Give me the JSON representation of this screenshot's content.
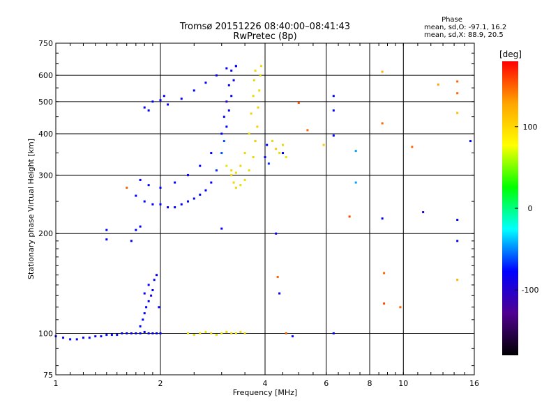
{
  "chart_data": {
    "type": "scatter",
    "title": "Tromsø 20151226 08:40:00–08:41:43",
    "subtitle": "RwPretec (8p)",
    "xlabel": "Frequency [MHz]",
    "ylabel": "Stationary phase Virtual Height [km]",
    "x_scale": "log",
    "y_scale": "log",
    "xlim": [
      1,
      16
    ],
    "ylim": [
      75,
      750
    ],
    "x_ticks": [
      1,
      2,
      4,
      6,
      8,
      10,
      16
    ],
    "y_ticks": [
      75,
      100,
      200,
      300,
      400,
      500,
      600,
      750
    ],
    "x_gridlines": [
      2,
      4,
      6,
      8,
      10
    ],
    "y_gridlines": [
      100,
      200,
      300,
      400,
      500,
      600
    ],
    "grid": true,
    "stats": {
      "header": "Phase",
      "line_o": "mean, sd,O: -97.1, 16.2",
      "line_x": "mean, sd,X: 88.9, 20.5"
    },
    "colorbar": {
      "label": "[deg]",
      "range": [
        -180,
        180
      ],
      "ticks": [
        100,
        0,
        -100
      ],
      "colors": [
        "#ff0000",
        "#ffa500",
        "#ffff00",
        "#00ff00",
        "#00ffff",
        "#0000ff",
        "#500090",
        "#000000"
      ]
    },
    "series": [
      {
        "values": [
          [
            1.0,
            98,
            -100
          ],
          [
            1.05,
            97,
            -100
          ],
          [
            1.1,
            96,
            -100
          ],
          [
            1.15,
            96,
            -105
          ],
          [
            1.2,
            97,
            -100
          ],
          [
            1.25,
            97,
            -100
          ],
          [
            1.3,
            98,
            -105
          ],
          [
            1.35,
            98,
            -100
          ],
          [
            1.4,
            99,
            -100
          ],
          [
            1.45,
            99,
            -100
          ],
          [
            1.5,
            99,
            -100
          ],
          [
            1.55,
            100,
            -100
          ],
          [
            1.6,
            100,
            -100
          ],
          [
            1.65,
            100,
            -100
          ],
          [
            1.7,
            100,
            -105
          ],
          [
            1.75,
            100,
            -100
          ],
          [
            1.8,
            101,
            -100
          ],
          [
            1.85,
            100,
            -100
          ],
          [
            1.9,
            100,
            -100
          ],
          [
            1.95,
            100,
            -100
          ],
          [
            2.0,
            100,
            -100
          ]
        ]
      },
      {
        "values": [
          [
            1.75,
            105,
            -100
          ],
          [
            1.78,
            110,
            -100
          ],
          [
            1.8,
            115,
            -100
          ],
          [
            1.82,
            120,
            -100
          ],
          [
            1.85,
            125,
            -100
          ],
          [
            1.88,
            130,
            -110
          ],
          [
            1.9,
            135,
            -100
          ],
          [
            1.92,
            145,
            -100
          ],
          [
            1.95,
            150,
            -100
          ],
          [
            1.85,
            140,
            -100
          ],
          [
            1.8,
            132,
            -100
          ],
          [
            1.98,
            120,
            -100
          ]
        ]
      },
      {
        "values": [
          [
            1.7,
            260,
            -100
          ],
          [
            1.8,
            250,
            -100
          ],
          [
            1.9,
            245,
            -100
          ],
          [
            2.0,
            245,
            -100
          ],
          [
            2.1,
            240,
            -105
          ],
          [
            2.2,
            240,
            -100
          ],
          [
            2.3,
            245,
            -100
          ],
          [
            2.4,
            250,
            -100
          ],
          [
            2.5,
            255,
            -100
          ],
          [
            2.6,
            262,
            -100
          ],
          [
            2.7,
            270,
            -100
          ],
          [
            2.8,
            285,
            -100
          ],
          [
            2.9,
            310,
            -90
          ],
          [
            3.0,
            350,
            -80
          ],
          [
            3.05,
            380,
            -80
          ],
          [
            3.1,
            420,
            -100
          ],
          [
            3.15,
            470,
            -100
          ],
          [
            3.2,
            520,
            -100
          ],
          [
            3.25,
            580,
            -100
          ],
          [
            3.3,
            640,
            -100
          ]
        ]
      },
      {
        "values": [
          [
            1.75,
            290,
            -100
          ],
          [
            1.85,
            280,
            -100
          ],
          [
            2.0,
            275,
            -100
          ],
          [
            2.2,
            285,
            -100
          ],
          [
            2.4,
            300,
            -100
          ],
          [
            2.6,
            320,
            -100
          ],
          [
            2.8,
            350,
            -100
          ],
          [
            3.0,
            400,
            -100
          ],
          [
            3.05,
            450,
            -100
          ],
          [
            3.1,
            500,
            -120
          ],
          [
            3.15,
            560,
            -100
          ],
          [
            3.2,
            620,
            -100
          ]
        ]
      },
      {
        "values": [
          [
            1.8,
            480,
            -100
          ],
          [
            1.9,
            500,
            -100
          ],
          [
            2.0,
            505,
            -100
          ],
          [
            2.1,
            490,
            -100
          ],
          [
            2.3,
            510,
            -100
          ],
          [
            2.5,
            540,
            -100
          ],
          [
            2.7,
            570,
            -100
          ],
          [
            2.9,
            600,
            -100
          ],
          [
            3.1,
            630,
            -100
          ],
          [
            3.3,
            640,
            -100
          ],
          [
            1.85,
            470,
            -100
          ],
          [
            2.05,
            520,
            -100
          ]
        ]
      },
      {
        "values": [
          [
            3.2,
            300,
            90
          ],
          [
            3.25,
            285,
            90
          ],
          [
            3.3,
            275,
            90
          ],
          [
            3.4,
            280,
            90
          ],
          [
            3.5,
            290,
            85
          ],
          [
            3.6,
            310,
            90
          ],
          [
            3.7,
            340,
            90
          ],
          [
            3.75,
            380,
            100
          ],
          [
            3.8,
            420,
            90
          ],
          [
            3.82,
            480,
            90
          ],
          [
            3.85,
            540,
            90
          ],
          [
            3.88,
            600,
            90
          ],
          [
            3.9,
            640,
            90
          ]
        ]
      },
      {
        "values": [
          [
            3.1,
            320,
            80
          ],
          [
            3.2,
            310,
            90
          ],
          [
            3.3,
            305,
            90
          ],
          [
            3.4,
            320,
            90
          ],
          [
            3.5,
            350,
            90
          ],
          [
            3.6,
            400,
            90
          ],
          [
            3.65,
            460,
            90
          ],
          [
            3.7,
            520,
            90
          ],
          [
            3.72,
            580,
            90
          ],
          [
            3.75,
            620,
            90
          ]
        ]
      },
      {
        "values": [
          [
            2.4,
            100,
            80
          ],
          [
            2.5,
            99,
            90
          ],
          [
            2.6,
            100,
            90
          ],
          [
            2.7,
            101,
            80
          ],
          [
            2.8,
            100,
            90
          ],
          [
            2.9,
            99,
            90
          ],
          [
            3.0,
            100,
            80
          ],
          [
            3.1,
            101,
            90
          ],
          [
            3.2,
            100,
            90
          ],
          [
            3.3,
            100,
            80
          ],
          [
            3.4,
            101,
            90
          ],
          [
            3.5,
            100,
            90
          ]
        ]
      },
      {
        "values": [
          [
            4.2,
            380,
            90
          ],
          [
            4.3,
            360,
            100
          ],
          [
            4.4,
            350,
            90
          ],
          [
            4.5,
            370,
            90
          ],
          [
            4.6,
            340,
            80
          ],
          [
            4.1,
            325,
            -90
          ],
          [
            4.0,
            340,
            -100
          ],
          [
            4.05,
            370,
            -100
          ]
        ]
      },
      {
        "values": [
          [
            1.4,
            192,
            -100
          ],
          [
            1.4,
            205,
            -100
          ],
          [
            1.65,
            190,
            -100
          ],
          [
            1.7,
            205,
            -100
          ],
          [
            1.75,
            210,
            -100
          ],
          [
            1.6,
            275,
            150
          ],
          [
            3.0,
            207,
            -100
          ],
          [
            4.5,
            350,
            -100
          ],
          [
            4.3,
            200,
            -100
          ],
          [
            4.35,
            148,
            150
          ],
          [
            4.4,
            132,
            -100
          ],
          [
            4.6,
            100,
            150
          ],
          [
            4.8,
            98,
            -100
          ],
          [
            5.0,
            496,
            160
          ],
          [
            5.3,
            410,
            150
          ],
          [
            5.9,
            370,
            100
          ],
          [
            6.3,
            520,
            -100
          ],
          [
            6.3,
            470,
            -100
          ],
          [
            6.3,
            395,
            -100
          ],
          [
            6.3,
            100,
            -100
          ],
          [
            7.0,
            225,
            160
          ],
          [
            7.3,
            355,
            -60
          ],
          [
            7.3,
            285,
            -60
          ],
          [
            8.7,
            615,
            120
          ],
          [
            8.7,
            430,
            150
          ],
          [
            8.7,
            222,
            -100
          ],
          [
            8.8,
            152,
            150
          ],
          [
            8.8,
            123,
            160
          ],
          [
            9.8,
            120,
            150
          ],
          [
            10.6,
            365,
            150
          ],
          [
            11.4,
            232,
            -120
          ],
          [
            12.6,
            563,
            130
          ],
          [
            14.3,
            575,
            150
          ],
          [
            14.3,
            530,
            150
          ],
          [
            14.3,
            462,
            110
          ],
          [
            14.3,
            220,
            -100
          ],
          [
            14.3,
            190,
            -100
          ],
          [
            14.3,
            145,
            120
          ],
          [
            15.6,
            380,
            -100
          ]
        ]
      }
    ]
  }
}
